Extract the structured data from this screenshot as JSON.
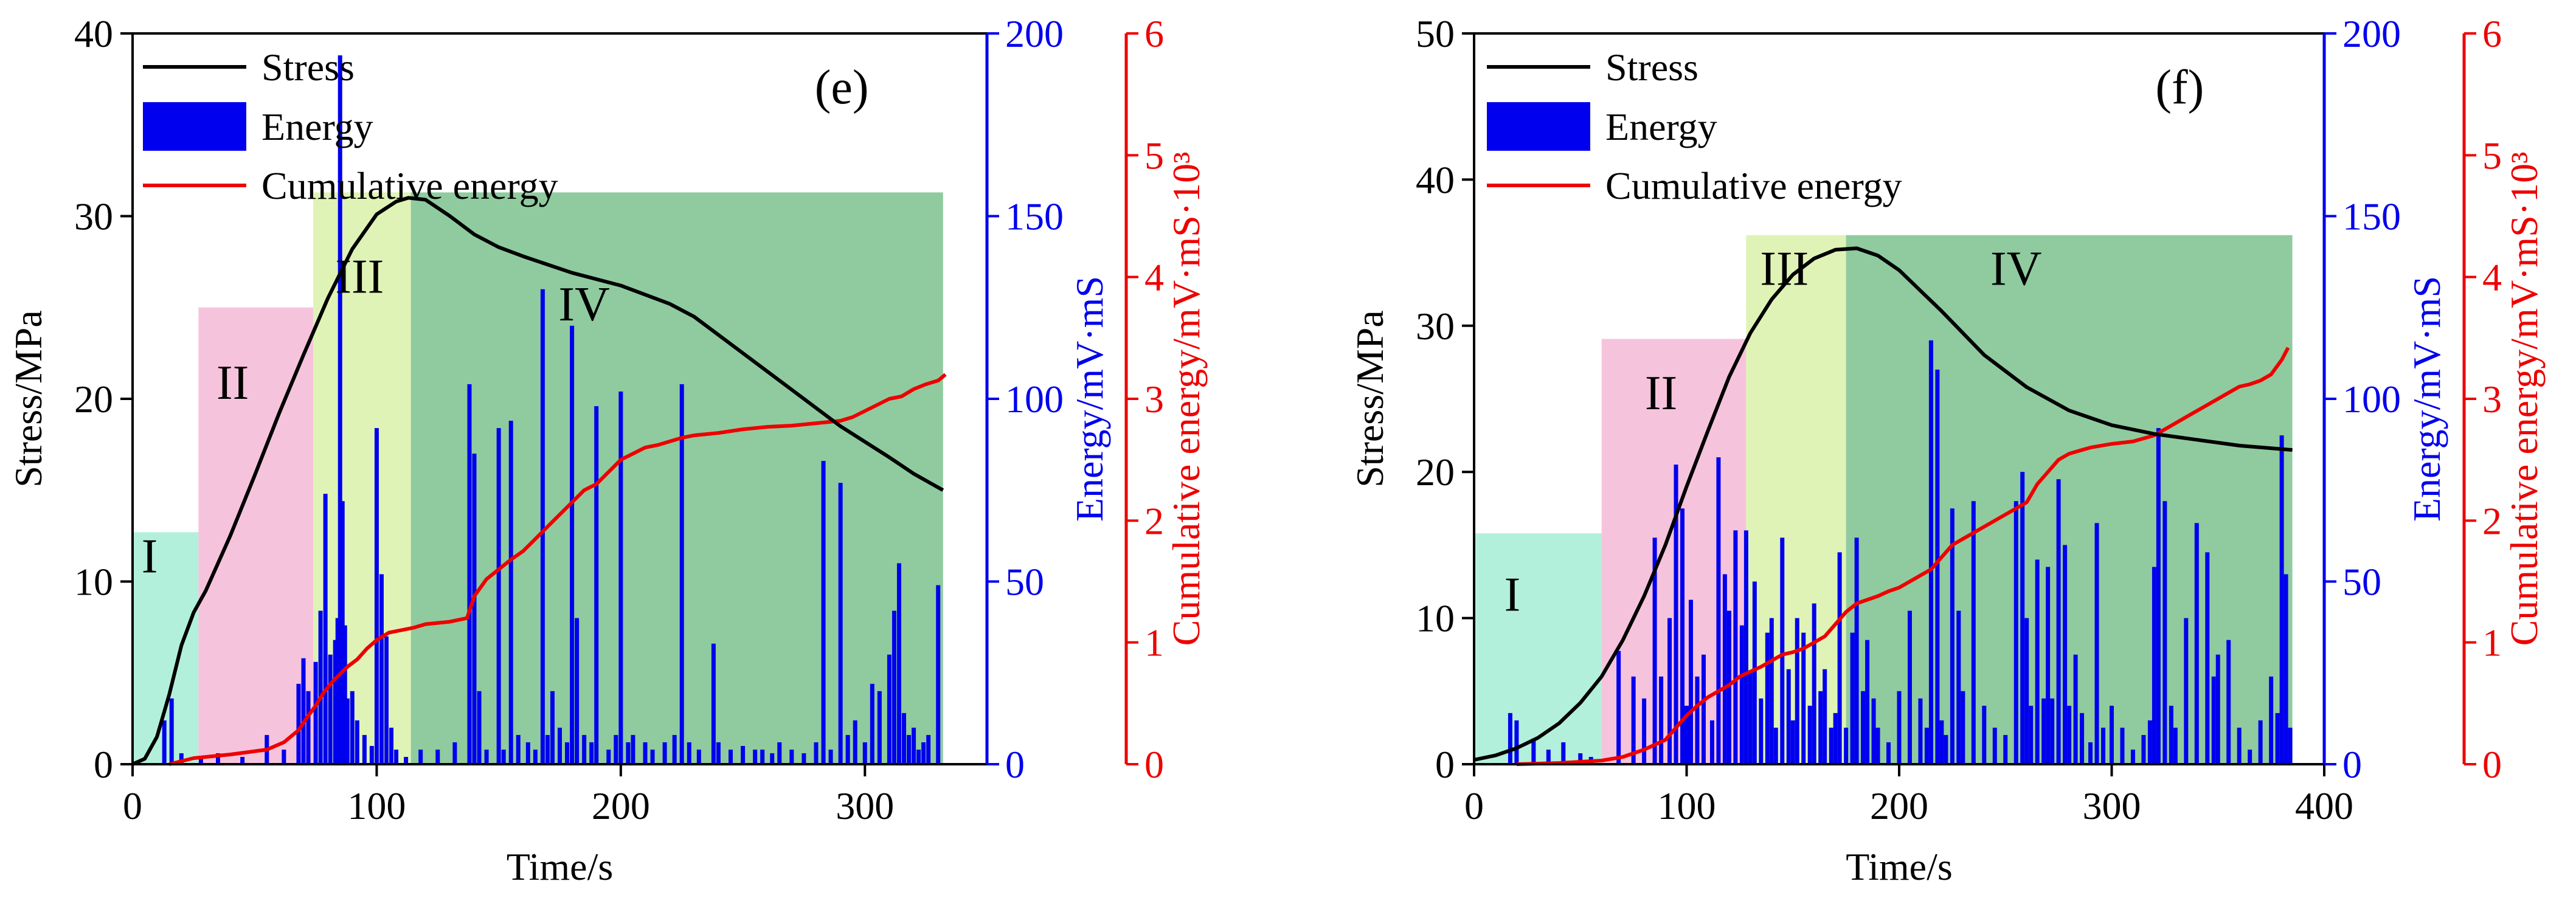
{
  "colors": {
    "stress": "#000000",
    "energy": "#0000ee",
    "cumulative": "#ee0000",
    "stage_I": "#b3f0dc",
    "stage_II": "#f6c3dc",
    "stage_III": "#dff3b6",
    "stage_IV": "#8fcb9f"
  },
  "chart_data": [
    {
      "panel": "(e)",
      "type": "line+bar",
      "xlabel": "Time/s",
      "ylabel_left": "Stress/MPa",
      "ylabel_energy": "Energy/mV·mS",
      "ylabel_cumulative": "Cumulative  energy/mV·mS·10³",
      "xlim": [
        0,
        350
      ],
      "ylim_stress": [
        0,
        40
      ],
      "ylim_energy": [
        0,
        200
      ],
      "ylim_cumulative": [
        0,
        6
      ],
      "xticks": [
        0,
        100,
        200,
        300
      ],
      "xtick_labels": [
        "0",
        "100",
        "200",
        "300"
      ],
      "yticks_stress": [
        0,
        10,
        20,
        30,
        40
      ],
      "ytick_labels_stress": [
        "0",
        "10",
        "20",
        "30",
        "40"
      ],
      "yticks_energy": [
        0,
        50,
        100,
        150,
        200
      ],
      "ytick_labels_energy": [
        "0",
        "50",
        "100",
        "150",
        "200"
      ],
      "yticks_cumulative": [
        0,
        1,
        2,
        3,
        4,
        5,
        6
      ],
      "ytick_labels_cumulative": [
        "0",
        "1",
        "2",
        "3",
        "4",
        "5",
        "6"
      ],
      "legend": [
        "Stress",
        "Energy",
        "Cumulative  energy"
      ],
      "stages": [
        {
          "label": "I",
          "x0": 0,
          "x1": 27,
          "top_stress": 12.7,
          "label_x": 7,
          "label_y": 10.5
        },
        {
          "label": "II",
          "x0": 27,
          "x1": 74,
          "top_stress": 25,
          "label_x": 41,
          "label_y": 20
        },
        {
          "label": "III",
          "x0": 74,
          "x1": 114,
          "top_stress": 31.3,
          "label_x": 93,
          "label_y": 25.8
        },
        {
          "label": "IV",
          "x0": 114,
          "x1": 332,
          "top_stress": 31.3,
          "label_x": 185,
          "label_y": 24.3
        }
      ],
      "stress_curve": {
        "x": [
          0,
          5,
          10,
          15,
          20,
          25,
          30,
          40,
          50,
          60,
          70,
          80,
          90,
          100,
          108,
          113,
          120,
          130,
          140,
          150,
          160,
          180,
          200,
          220,
          230,
          250,
          270,
          290,
          310,
          320,
          332
        ],
        "y": [
          0,
          0.3,
          1.5,
          3.8,
          6.5,
          8.3,
          9.5,
          12.5,
          15.8,
          19.2,
          22.4,
          25.5,
          28.2,
          30.1,
          30.8,
          31.0,
          30.9,
          30.0,
          29.0,
          28.3,
          27.8,
          26.9,
          26.2,
          25.2,
          24.5,
          22.5,
          20.5,
          18.5,
          16.8,
          15.9,
          15.0
        ]
      },
      "cumulative_curve": {
        "x": [
          15,
          25,
          40,
          55,
          62,
          68,
          72,
          75,
          78,
          82,
          85,
          88,
          92,
          96,
          100,
          105,
          110,
          115,
          120,
          130,
          137,
          140,
          145,
          150,
          155,
          160,
          165,
          170,
          175,
          180,
          185,
          190,
          195,
          200,
          205,
          210,
          215,
          220,
          225,
          230,
          240,
          250,
          260,
          270,
          280,
          290,
          295,
          300,
          305,
          310,
          315,
          320,
          325,
          330,
          333
        ],
        "y": [
          0,
          0.05,
          0.08,
          0.12,
          0.18,
          0.28,
          0.4,
          0.48,
          0.58,
          0.68,
          0.74,
          0.8,
          0.86,
          0.95,
          1.02,
          1.08,
          1.1,
          1.12,
          1.15,
          1.17,
          1.2,
          1.38,
          1.52,
          1.6,
          1.68,
          1.75,
          1.85,
          1.95,
          2.05,
          2.15,
          2.25,
          2.3,
          2.4,
          2.5,
          2.55,
          2.6,
          2.62,
          2.65,
          2.68,
          2.7,
          2.72,
          2.75,
          2.77,
          2.78,
          2.8,
          2.82,
          2.85,
          2.9,
          2.95,
          3.0,
          3.02,
          3.08,
          3.12,
          3.15,
          3.2
        ]
      },
      "energy_bars": {
        "x": [
          13,
          16,
          20,
          28,
          35,
          45,
          55,
          62,
          68,
          70,
          72,
          75,
          77,
          79,
          81,
          83,
          84,
          85,
          86,
          87,
          88,
          90,
          92,
          95,
          98,
          100,
          102,
          104,
          106,
          108,
          112,
          118,
          125,
          132,
          138,
          140,
          142,
          145,
          150,
          152,
          155,
          158,
          162,
          165,
          168,
          170,
          172,
          175,
          178,
          180,
          182,
          185,
          188,
          190,
          195,
          198,
          200,
          203,
          205,
          210,
          213,
          218,
          222,
          225,
          228,
          232,
          238,
          240,
          245,
          250,
          255,
          258,
          262,
          265,
          270,
          275,
          280,
          283,
          286,
          290,
          293,
          296,
          300,
          303,
          306,
          310,
          312,
          314,
          316,
          318,
          320,
          322,
          324,
          326,
          330
        ],
        "values": [
          12,
          18,
          3,
          2,
          3,
          2,
          8,
          4,
          22,
          29,
          20,
          28,
          42,
          74,
          30,
          34,
          40,
          194,
          72,
          38,
          18,
          20,
          12,
          8,
          5,
          92,
          52,
          35,
          10,
          4,
          2,
          4,
          4,
          6,
          104,
          85,
          20,
          4,
          92,
          4,
          94,
          8,
          6,
          4,
          130,
          8,
          20,
          10,
          6,
          120,
          40,
          8,
          6,
          98,
          4,
          8,
          102,
          6,
          8,
          6,
          4,
          6,
          8,
          104,
          6,
          4,
          33,
          6,
          4,
          5,
          4,
          4,
          3,
          6,
          4,
          3,
          6,
          83,
          4,
          77,
          8,
          12,
          6,
          22,
          20,
          30,
          42,
          55,
          14,
          8,
          10,
          4,
          6,
          8,
          49
        ]
      }
    },
    {
      "panel": "(f)",
      "type": "line+bar",
      "xlabel": "Time/s",
      "ylabel_left": "Stress/MPa",
      "ylabel_energy": "Energy/mV·mS",
      "ylabel_cumulative": "Cumulative  energy/mV·mS·10³",
      "xlim": [
        0,
        400
      ],
      "ylim_stress": [
        0,
        50
      ],
      "ylim_energy": [
        0,
        200
      ],
      "ylim_cumulative": [
        0,
        6
      ],
      "xticks": [
        0,
        100,
        200,
        300,
        400
      ],
      "xtick_labels": [
        "0",
        "100",
        "200",
        "300",
        "400"
      ],
      "yticks_stress": [
        0,
        10,
        20,
        30,
        40,
        50
      ],
      "ytick_labels_stress": [
        "0",
        "10",
        "20",
        "30",
        "40",
        "50"
      ],
      "yticks_energy": [
        0,
        50,
        100,
        150,
        200
      ],
      "ytick_labels_energy": [
        "0",
        "50",
        "100",
        "150",
        "200"
      ],
      "yticks_cumulative": [
        0,
        1,
        2,
        3,
        4,
        5,
        6
      ],
      "ytick_labels_cumulative": [
        "0",
        "1",
        "2",
        "3",
        "4",
        "5",
        "6"
      ],
      "legend": [
        "Stress",
        "Energy",
        "Cumulative  energy"
      ],
      "stages": [
        {
          "label": "I",
          "x0": 0,
          "x1": 60,
          "top_stress": 15.8,
          "label_x": 18,
          "label_y": 10.5
        },
        {
          "label": "II",
          "x0": 60,
          "x1": 128,
          "top_stress": 29.1,
          "label_x": 88,
          "label_y": 24.3
        },
        {
          "label": "III",
          "x0": 128,
          "x1": 175,
          "top_stress": 36.2,
          "label_x": 146,
          "label_y": 32.8
        },
        {
          "label": "IV",
          "x0": 175,
          "x1": 385,
          "top_stress": 36.2,
          "label_x": 255,
          "label_y": 32.8
        }
      ],
      "stress_curve": {
        "x": [
          0,
          10,
          20,
          30,
          40,
          50,
          60,
          70,
          80,
          90,
          100,
          110,
          120,
          130,
          140,
          150,
          160,
          170,
          180,
          190,
          200,
          220,
          240,
          260,
          280,
          300,
          320,
          340,
          360,
          385
        ],
        "y": [
          0.3,
          0.6,
          1.1,
          1.8,
          2.8,
          4.2,
          6.0,
          8.5,
          11.5,
          15.0,
          19.0,
          22.8,
          26.5,
          29.5,
          31.8,
          33.5,
          34.6,
          35.2,
          35.3,
          34.8,
          33.8,
          31.0,
          28.0,
          25.8,
          24.2,
          23.2,
          22.6,
          22.2,
          21.8,
          21.5
        ]
      },
      "cumulative_curve": {
        "x": [
          20,
          40,
          60,
          70,
          80,
          90,
          95,
          100,
          105,
          110,
          115,
          120,
          125,
          130,
          135,
          140,
          145,
          150,
          155,
          160,
          165,
          170,
          175,
          180,
          185,
          190,
          195,
          200,
          210,
          215,
          220,
          225,
          230,
          235,
          240,
          245,
          250,
          255,
          260,
          265,
          270,
          275,
          280,
          290,
          300,
          310,
          320,
          325,
          330,
          335,
          340,
          345,
          350,
          355,
          360,
          365,
          370,
          375,
          380,
          383
        ],
        "y": [
          0,
          0.01,
          0.03,
          0.06,
          0.12,
          0.2,
          0.3,
          0.4,
          0.48,
          0.55,
          0.6,
          0.65,
          0.72,
          0.76,
          0.8,
          0.85,
          0.9,
          0.92,
          0.95,
          1.0,
          1.05,
          1.15,
          1.25,
          1.32,
          1.35,
          1.38,
          1.42,
          1.45,
          1.55,
          1.6,
          1.7,
          1.8,
          1.85,
          1.9,
          1.95,
          2.0,
          2.05,
          2.1,
          2.15,
          2.3,
          2.4,
          2.5,
          2.55,
          2.6,
          2.63,
          2.65,
          2.7,
          2.75,
          2.8,
          2.85,
          2.9,
          2.95,
          3.0,
          3.05,
          3.1,
          3.12,
          3.15,
          3.2,
          3.32,
          3.42
        ]
      },
      "energy_bars": {
        "x": [
          17,
          20,
          28,
          35,
          42,
          50,
          55,
          68,
          75,
          80,
          85,
          88,
          92,
          95,
          98,
          100,
          102,
          105,
          108,
          112,
          115,
          118,
          120,
          123,
          126,
          128,
          130,
          132,
          135,
          138,
          140,
          142,
          145,
          148,
          150,
          152,
          155,
          158,
          160,
          163,
          165,
          168,
          170,
          172,
          175,
          178,
          180,
          183,
          185,
          188,
          190,
          195,
          200,
          205,
          210,
          213,
          215,
          218,
          220,
          222,
          225,
          228,
          230,
          235,
          240,
          245,
          250,
          255,
          258,
          260,
          262,
          265,
          268,
          270,
          272,
          275,
          278,
          280,
          283,
          286,
          290,
          293,
          296,
          300,
          305,
          310,
          315,
          318,
          320,
          322,
          325,
          328,
          330,
          335,
          340,
          345,
          348,
          350,
          355,
          360,
          365,
          370,
          375,
          378,
          380,
          382,
          384
        ],
        "values": [
          14,
          12,
          7,
          4,
          6,
          3,
          2,
          31,
          24,
          18,
          62,
          24,
          40,
          82,
          70,
          16,
          45,
          24,
          30,
          12,
          84,
          52,
          42,
          64,
          38,
          64,
          25,
          50,
          18,
          36,
          40,
          10,
          62,
          26,
          12,
          40,
          36,
          16,
          44,
          20,
          26,
          10,
          14,
          58,
          10,
          36,
          62,
          20,
          34,
          18,
          10,
          6,
          20,
          42,
          18,
          10,
          116,
          108,
          12,
          8,
          70,
          42,
          20,
          72,
          16,
          10,
          8,
          72,
          80,
          40,
          16,
          56,
          18,
          54,
          18,
          78,
          60,
          16,
          30,
          14,
          6,
          66,
          10,
          16,
          10,
          4,
          8,
          12,
          54,
          92,
          72,
          16,
          10,
          40,
          66,
          58,
          24,
          30,
          34,
          10,
          4,
          12,
          24,
          14,
          90,
          52,
          10
        ]
      }
    }
  ]
}
